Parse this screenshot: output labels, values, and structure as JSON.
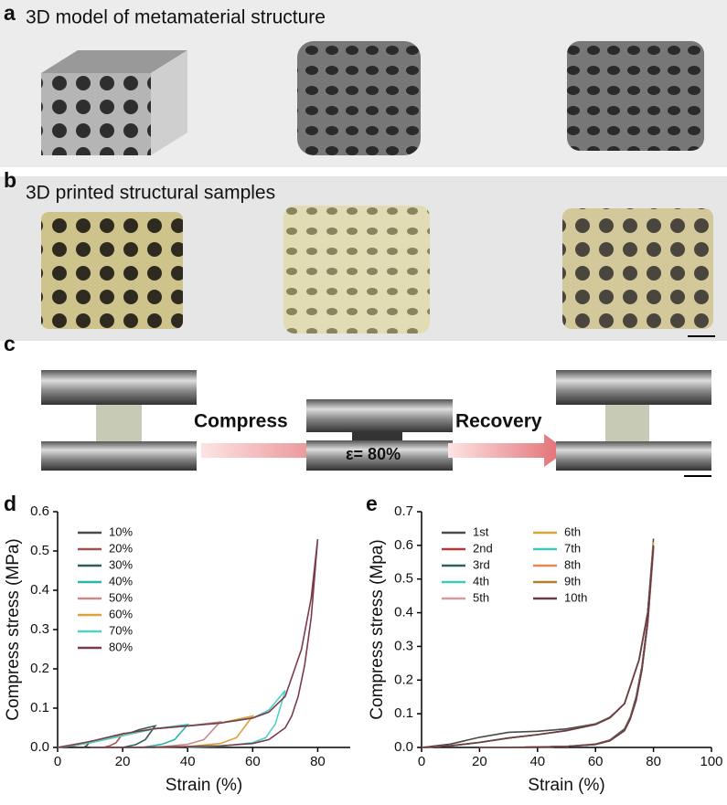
{
  "panels": {
    "a": {
      "letter": "a",
      "title": "3D model of metamaterial structure"
    },
    "b": {
      "letter": "b",
      "title": "3D printed structural samples"
    },
    "c": {
      "letter": "c",
      "compress": "Compress",
      "strain": "ε= 80%",
      "recovery": "Recovery"
    },
    "d": {
      "letter": "d"
    },
    "e": {
      "letter": "e"
    }
  },
  "chart_data": [
    {
      "type": "line",
      "x_label": "Strain (%)",
      "y_label": "Compress stress (MPa)",
      "xlim": [
        0,
        90
      ],
      "xticks": [
        0,
        20,
        40,
        60,
        80
      ],
      "ylim": [
        0,
        0.6
      ],
      "yticks": [
        {
          "value": 0,
          "label": "0.0"
        },
        0.1,
        0.2,
        0.3,
        0.4,
        0.5,
        0.6
      ],
      "legend": "upper left",
      "series": [
        {
          "name": "10%",
          "color": "#4a4a4a",
          "x": [
            0,
            4,
            7,
            10,
            9,
            8
          ],
          "values": [
            0,
            0.003,
            0.008,
            0.015,
            0.005,
            0
          ]
        },
        {
          "name": "20%",
          "color": "#a0524f",
          "x": [
            0,
            5,
            10,
            15,
            20,
            18,
            16,
            14
          ],
          "values": [
            0,
            0.005,
            0.012,
            0.022,
            0.035,
            0.012,
            0.004,
            0
          ]
        },
        {
          "name": "30%",
          "color": "#2e5d5d",
          "x": [
            0,
            10,
            20,
            25,
            30,
            27,
            24,
            20
          ],
          "values": [
            0,
            0.012,
            0.03,
            0.045,
            0.055,
            0.02,
            0.007,
            0
          ]
        },
        {
          "name": "40%",
          "color": "#2bb5b0",
          "x": [
            0,
            10,
            20,
            30,
            40,
            36,
            32,
            26
          ],
          "values": [
            0,
            0.012,
            0.03,
            0.048,
            0.058,
            0.02,
            0.008,
            0
          ]
        },
        {
          "name": "50%",
          "color": "#c98a8a",
          "x": [
            0,
            10,
            20,
            30,
            40,
            50,
            45,
            40,
            30
          ],
          "values": [
            0,
            0.012,
            0.03,
            0.048,
            0.055,
            0.065,
            0.02,
            0.008,
            0
          ]
        },
        {
          "name": "60%",
          "color": "#d9a23a",
          "x": [
            0,
            10,
            20,
            30,
            40,
            50,
            60,
            55,
            50,
            40,
            30
          ],
          "values": [
            0,
            0.012,
            0.03,
            0.048,
            0.055,
            0.062,
            0.08,
            0.025,
            0.01,
            0.002,
            0
          ]
        },
        {
          "name": "70%",
          "color": "#4fd1c8",
          "x": [
            0,
            10,
            20,
            30,
            40,
            50,
            60,
            65,
            70,
            67,
            64,
            60,
            50,
            40
          ],
          "values": [
            0,
            0.012,
            0.03,
            0.048,
            0.055,
            0.062,
            0.075,
            0.095,
            0.145,
            0.06,
            0.025,
            0.012,
            0.003,
            0
          ]
        },
        {
          "name": "80%",
          "color": "#7a3c4a",
          "x": [
            0,
            10,
            20,
            30,
            40,
            50,
            60,
            65,
            70,
            75,
            78,
            80,
            78,
            76,
            74,
            72,
            70,
            65,
            60,
            50,
            40,
            30,
            20,
            10
          ],
          "values": [
            0,
            0.015,
            0.035,
            0.048,
            0.055,
            0.062,
            0.075,
            0.09,
            0.13,
            0.25,
            0.38,
            0.53,
            0.33,
            0.21,
            0.13,
            0.08,
            0.05,
            0.02,
            0.01,
            0.004,
            0.002,
            0.001,
            0,
            0
          ]
        }
      ]
    },
    {
      "type": "line",
      "x_label": "Strain (%)",
      "y_label": "Compress stress (Mpa)",
      "xlim": [
        0,
        100
      ],
      "xticks": [
        0,
        20,
        40,
        60,
        80,
        100
      ],
      "ylim": [
        0,
        0.7
      ],
      "yticks": [
        {
          "value": 0,
          "label": "0.0"
        },
        0.1,
        0.2,
        0.3,
        0.4,
        0.5,
        0.6,
        0.7
      ],
      "legend": "upper left",
      "series": [
        {
          "name": "1st",
          "color": "#4a4a4a",
          "x": [
            0,
            10,
            20,
            30,
            40,
            50,
            60,
            65,
            70,
            75,
            78,
            80,
            78,
            76,
            74,
            72,
            70,
            65,
            60,
            50,
            40,
            30,
            20
          ],
          "values": [
            0,
            0.01,
            0.03,
            0.045,
            0.048,
            0.055,
            0.07,
            0.09,
            0.13,
            0.26,
            0.4,
            0.62,
            0.38,
            0.24,
            0.15,
            0.09,
            0.055,
            0.022,
            0.01,
            0.003,
            0.001,
            0,
            0
          ]
        },
        {
          "name": "2nd",
          "color": "#b03a3a",
          "x": [
            0,
            10,
            20,
            30,
            40,
            50,
            60,
            65,
            70,
            75,
            78,
            80,
            78,
            76,
            74,
            72,
            70,
            65,
            60,
            50,
            40,
            30,
            20
          ],
          "values": [
            0,
            0.005,
            0.015,
            0.028,
            0.038,
            0.05,
            0.068,
            0.088,
            0.13,
            0.26,
            0.4,
            0.6,
            0.37,
            0.23,
            0.14,
            0.085,
            0.05,
            0.02,
            0.009,
            0.003,
            0.001,
            0,
            0
          ]
        },
        {
          "name": "3rd",
          "color": "#2e6060",
          "x": [
            0,
            10,
            20,
            30,
            40,
            50,
            60,
            65,
            70,
            75,
            78,
            80,
            78,
            76,
            74,
            72,
            70,
            65,
            60,
            50,
            40,
            30,
            20
          ],
          "values": [
            0,
            0.005,
            0.015,
            0.028,
            0.038,
            0.05,
            0.068,
            0.088,
            0.13,
            0.26,
            0.4,
            0.59,
            0.37,
            0.23,
            0.14,
            0.085,
            0.05,
            0.02,
            0.009,
            0.003,
            0.001,
            0,
            0
          ]
        },
        {
          "name": "4th",
          "color": "#3cc9c0",
          "x": [
            0,
            10,
            20,
            30,
            40,
            50,
            60,
            65,
            70,
            75,
            78,
            80,
            78,
            76,
            74,
            72,
            70,
            65,
            60,
            50,
            40,
            30,
            20
          ],
          "values": [
            0,
            0.005,
            0.015,
            0.028,
            0.038,
            0.05,
            0.068,
            0.088,
            0.13,
            0.26,
            0.4,
            0.6,
            0.37,
            0.23,
            0.14,
            0.085,
            0.05,
            0.02,
            0.009,
            0.003,
            0.001,
            0,
            0
          ]
        },
        {
          "name": "5th",
          "color": "#d49a9a",
          "x": [
            0,
            10,
            20,
            30,
            40,
            50,
            60,
            65,
            70,
            75,
            78,
            80,
            78,
            76,
            74,
            72,
            70,
            65,
            60,
            50,
            40,
            30,
            20
          ],
          "values": [
            0,
            0.005,
            0.015,
            0.028,
            0.038,
            0.05,
            0.068,
            0.088,
            0.13,
            0.26,
            0.4,
            0.58,
            0.37,
            0.23,
            0.14,
            0.085,
            0.05,
            0.02,
            0.009,
            0.003,
            0.001,
            0,
            0
          ]
        },
        {
          "name": "6th",
          "color": "#d4a73a",
          "x": [
            0,
            10,
            20,
            30,
            40,
            50,
            60,
            65,
            70,
            75,
            78,
            80,
            78,
            76,
            74,
            72,
            70,
            65,
            60,
            50,
            40,
            30,
            20
          ],
          "values": [
            0,
            0.005,
            0.015,
            0.028,
            0.038,
            0.05,
            0.068,
            0.088,
            0.13,
            0.26,
            0.4,
            0.61,
            0.37,
            0.23,
            0.14,
            0.085,
            0.05,
            0.02,
            0.009,
            0.003,
            0.001,
            0,
            0
          ]
        },
        {
          "name": "7th",
          "color": "#40c8c0",
          "x": [
            0,
            10,
            20,
            30,
            40,
            50,
            60,
            65,
            70,
            75,
            78,
            80,
            78,
            76,
            74,
            72,
            70,
            65,
            60,
            50,
            40,
            30,
            20
          ],
          "values": [
            0,
            0.005,
            0.015,
            0.028,
            0.038,
            0.05,
            0.068,
            0.088,
            0.13,
            0.26,
            0.4,
            0.6,
            0.37,
            0.23,
            0.14,
            0.085,
            0.05,
            0.02,
            0.009,
            0.003,
            0.001,
            0,
            0
          ]
        },
        {
          "name": "8th",
          "color": "#e08a50",
          "x": [
            0,
            10,
            20,
            30,
            40,
            50,
            60,
            65,
            70,
            75,
            78,
            80,
            78,
            76,
            74,
            72,
            70,
            65,
            60,
            50,
            40,
            30,
            20
          ],
          "values": [
            0,
            0.005,
            0.015,
            0.028,
            0.038,
            0.05,
            0.068,
            0.088,
            0.13,
            0.26,
            0.4,
            0.59,
            0.37,
            0.23,
            0.14,
            0.085,
            0.05,
            0.02,
            0.009,
            0.003,
            0.001,
            0,
            0
          ]
        },
        {
          "name": "9th",
          "color": "#b08030",
          "x": [
            0,
            10,
            20,
            30,
            40,
            50,
            60,
            65,
            70,
            75,
            78,
            80,
            78,
            76,
            74,
            72,
            70,
            65,
            60,
            50,
            40,
            30,
            20
          ],
          "values": [
            0,
            0.005,
            0.015,
            0.028,
            0.038,
            0.05,
            0.068,
            0.088,
            0.13,
            0.26,
            0.4,
            0.6,
            0.37,
            0.23,
            0.14,
            0.085,
            0.05,
            0.02,
            0.009,
            0.003,
            0.001,
            0,
            0
          ]
        },
        {
          "name": "10th",
          "color": "#6a3a4a",
          "x": [
            0,
            10,
            20,
            30,
            40,
            50,
            60,
            65,
            70,
            75,
            78,
            80,
            78,
            76,
            74,
            72,
            70,
            65,
            60,
            50,
            40,
            30,
            20
          ],
          "values": [
            0,
            0.005,
            0.015,
            0.028,
            0.038,
            0.05,
            0.068,
            0.088,
            0.13,
            0.26,
            0.4,
            0.6,
            0.37,
            0.23,
            0.14,
            0.085,
            0.05,
            0.02,
            0.009,
            0.003,
            0.001,
            0,
            0
          ]
        }
      ]
    }
  ]
}
